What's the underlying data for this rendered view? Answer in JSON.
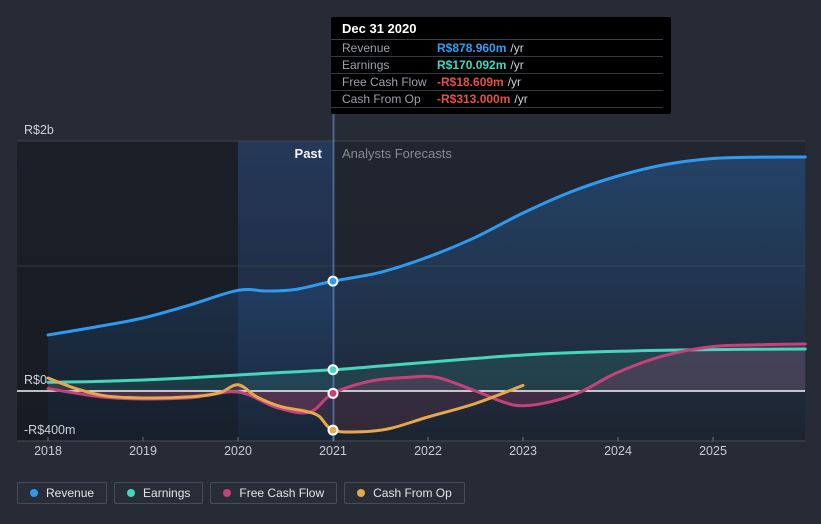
{
  "chart": {
    "past_label": "Past",
    "forecast_label": "Analysts Forecasts"
  },
  "tooltip": {
    "title": "Dec 31 2020",
    "rows": [
      {
        "label": "Revenue",
        "value": "R$878.960m",
        "suffix": "/yr",
        "color": "#2f9ef3"
      },
      {
        "label": "Earnings",
        "value": "R$170.092m",
        "suffix": "/yr",
        "color": "#41d8bd"
      },
      {
        "label": "Free Cash Flow",
        "value": "-R$18.609m",
        "suffix": "/yr",
        "color": "#e4504c"
      },
      {
        "label": "Cash From Op",
        "value": "-R$313.000m",
        "suffix": "/yr",
        "color": "#e4504c"
      }
    ]
  },
  "chart_data": {
    "type": "line",
    "title": "",
    "xlabel": "",
    "ylabel": "",
    "unit": "R$ millions per year",
    "x_ticks": [
      2018,
      2019,
      2020,
      2021,
      2022,
      2023,
      2024,
      2025
    ],
    "ylim": [
      -400,
      2000
    ],
    "grid": true,
    "legend_position": "bottom",
    "divider_year": 2021,
    "hover_band": [
      2020,
      2021
    ],
    "marker_year": 2021,
    "y_gridlines": [
      {
        "label": "R$2b",
        "value": 2000,
        "style": "major"
      },
      {
        "label": "",
        "value": 1000,
        "style": "minor"
      },
      {
        "label": "R$0",
        "value": 0,
        "style": "zero"
      },
      {
        "label": "-R$400m",
        "value": -400,
        "style": "axis"
      }
    ],
    "series": [
      {
        "name": "Revenue",
        "color": "#2e9bf0",
        "fill": "revenue-gradient",
        "baseline": "bottom",
        "points": [
          [
            2018,
            448
          ],
          [
            2018.5,
            512
          ],
          [
            2019,
            584
          ],
          [
            2019.5,
            690
          ],
          [
            2020,
            806
          ],
          [
            2020.3,
            800
          ],
          [
            2020.6,
            812
          ],
          [
            2021,
            879
          ],
          [
            2021.5,
            950
          ],
          [
            2022,
            1072
          ],
          [
            2022.5,
            1230
          ],
          [
            2023,
            1424
          ],
          [
            2023.5,
            1592
          ],
          [
            2024,
            1720
          ],
          [
            2024.5,
            1812
          ],
          [
            2025,
            1860
          ],
          [
            2025.5,
            1871
          ],
          [
            2025.97,
            1872
          ]
        ]
      },
      {
        "name": "Earnings",
        "color": "#45d6bd",
        "fill": "rgba(69,214,189,0.13)",
        "baseline": "zero",
        "points": [
          [
            2018,
            70
          ],
          [
            2018.5,
            76
          ],
          [
            2019,
            88
          ],
          [
            2019.5,
            106
          ],
          [
            2020,
            128
          ],
          [
            2020.5,
            150
          ],
          [
            2021,
            170
          ],
          [
            2021.5,
            200
          ],
          [
            2022,
            230
          ],
          [
            2022.5,
            261
          ],
          [
            2023,
            288
          ],
          [
            2023.5,
            306
          ],
          [
            2024,
            318
          ],
          [
            2024.5,
            326
          ],
          [
            2025,
            331
          ],
          [
            2025.97,
            336
          ]
        ]
      },
      {
        "name": "Free Cash Flow",
        "color": "#c24379",
        "fill": "rgba(199,64,123,0.20)",
        "baseline": "zero",
        "points": [
          [
            2018,
            20
          ],
          [
            2018.3,
            -18
          ],
          [
            2018.6,
            -50
          ],
          [
            2019,
            -64
          ],
          [
            2019.5,
            -54
          ],
          [
            2020,
            -8
          ],
          [
            2020.4,
            -130
          ],
          [
            2020.75,
            -170
          ],
          [
            2021,
            -18.6
          ],
          [
            2021.4,
            80
          ],
          [
            2021.8,
            110
          ],
          [
            2022.1,
            108
          ],
          [
            2022.5,
            0
          ],
          [
            2022.8,
            -90
          ],
          [
            2023,
            -118
          ],
          [
            2023.3,
            -85
          ],
          [
            2023.6,
            -10
          ],
          [
            2024,
            150
          ],
          [
            2024.5,
            286
          ],
          [
            2025,
            356
          ],
          [
            2025.5,
            370
          ],
          [
            2025.97,
            376
          ]
        ]
      },
      {
        "name": "Cash From Op",
        "color": "#e6a84f",
        "fill": "rgba(190,70,100,0.14)",
        "baseline": "zero",
        "points": [
          [
            2018,
            104
          ],
          [
            2018.3,
            18
          ],
          [
            2018.6,
            -38
          ],
          [
            2019,
            -56
          ],
          [
            2019.5,
            -46
          ],
          [
            2019.8,
            -16
          ],
          [
            2020,
            50
          ],
          [
            2020.2,
            -48
          ],
          [
            2020.45,
            -125
          ],
          [
            2020.7,
            -160
          ],
          [
            2020.85,
            -200
          ],
          [
            2021,
            -313
          ],
          [
            2021.3,
            -326
          ],
          [
            2021.6,
            -300
          ],
          [
            2022,
            -208
          ],
          [
            2022.5,
            -100
          ],
          [
            2023,
            45
          ]
        ]
      }
    ]
  }
}
